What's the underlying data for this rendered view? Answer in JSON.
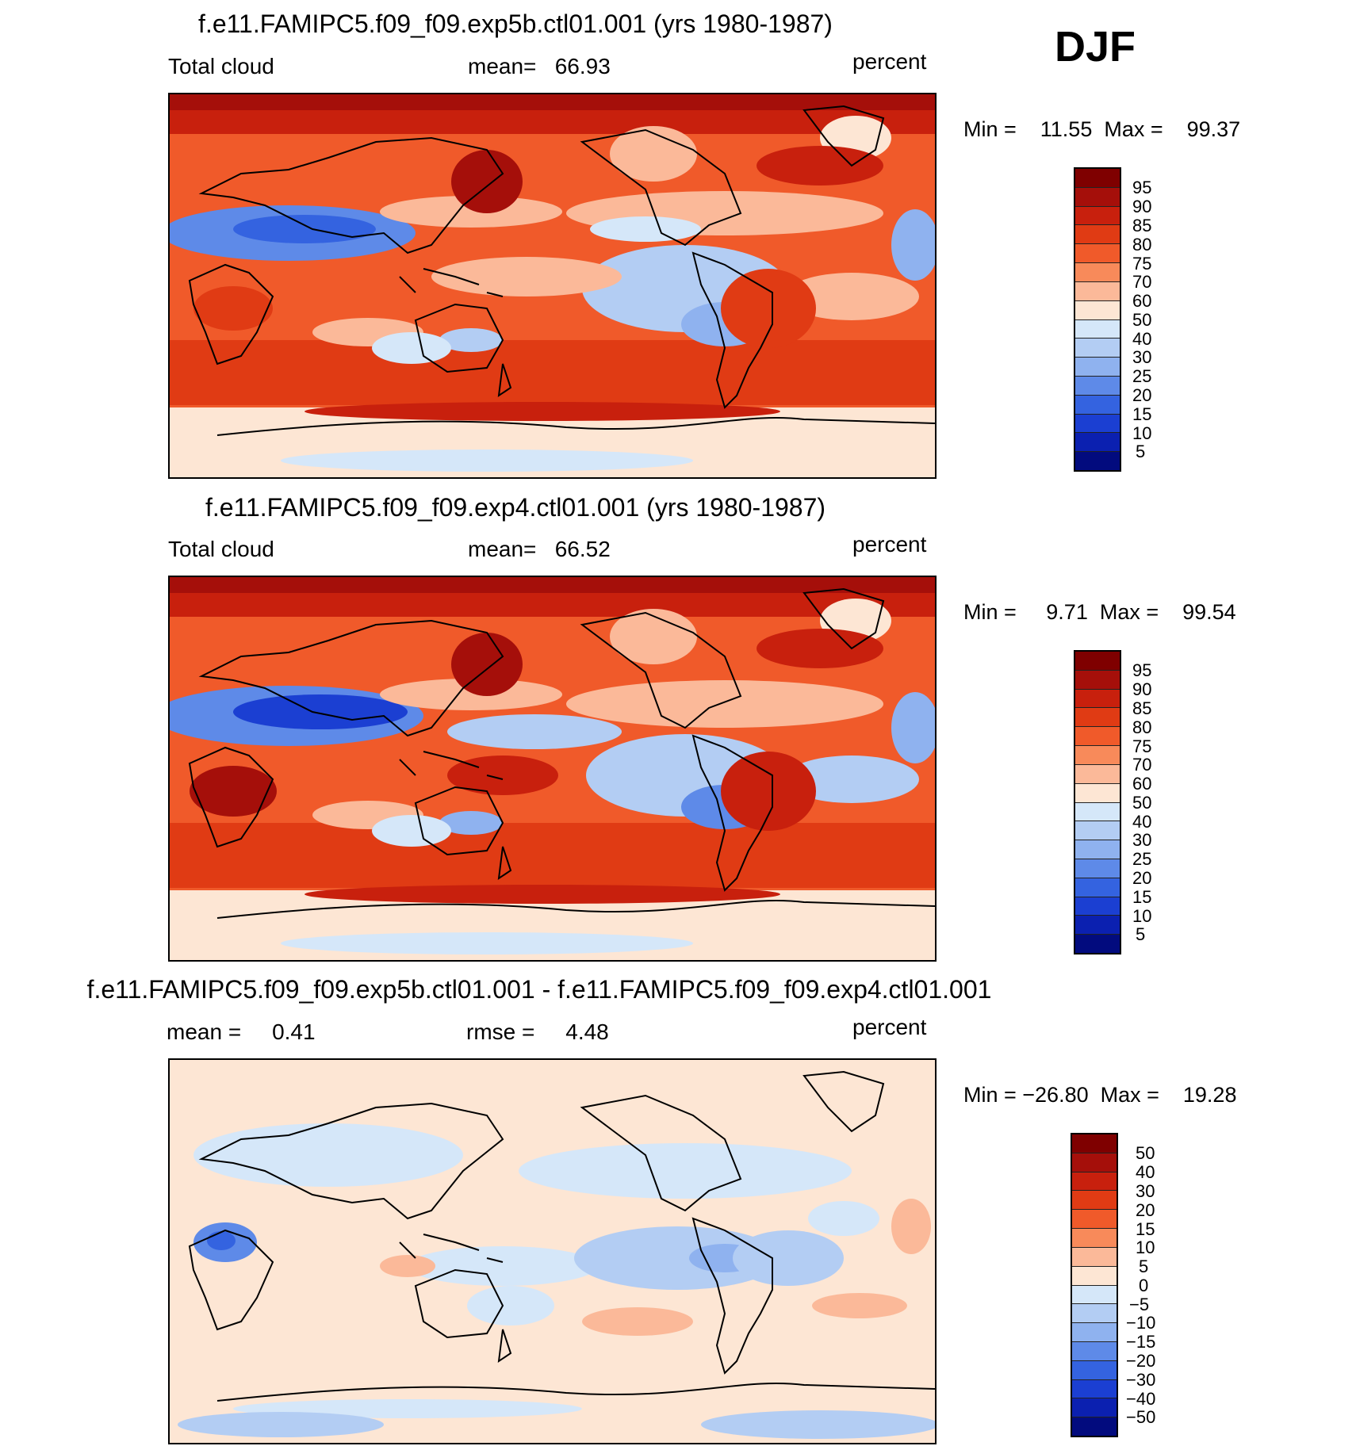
{
  "season": "DJF",
  "panels": [
    {
      "title": "f.e11.FAMIPC5.f09_f09.exp5b.ctl01.001 (yrs 1980-1987)",
      "left_label": "Total cloud",
      "center_label": "mean=   66.93",
      "right_label": "percent",
      "minmax": "Min =    11.55  Max =    99.37",
      "colorbar_labels": [
        "95",
        "90",
        "85",
        "80",
        "75",
        "70",
        "60",
        "50",
        "40",
        "30",
        "25",
        "20",
        "15",
        "10",
        "5"
      ]
    },
    {
      "title": "f.e11.FAMIPC5.f09_f09.exp4.ctl01.001 (yrs 1980-1987)",
      "left_label": "Total cloud",
      "center_label": "mean=   66.52",
      "right_label": "percent",
      "minmax": "Min =     9.71  Max =    99.54",
      "colorbar_labels": [
        "95",
        "90",
        "85",
        "80",
        "75",
        "70",
        "60",
        "50",
        "40",
        "30",
        "25",
        "20",
        "15",
        "10",
        "5"
      ]
    },
    {
      "title": "f.e11.FAMIPC5.f09_f09.exp5b.ctl01.001 - f.e11.FAMIPC5.f09_f09.exp4.ctl01.001",
      "left_label": "mean =     0.41",
      "center_label": "rmse =     4.48",
      "right_label": "percent",
      "minmax": "Min = −26.80  Max =    19.28",
      "colorbar_labels": [
        "50",
        "40",
        "30",
        "20",
        "15",
        "10",
        "5",
        "0",
        "−5",
        "−10",
        "−15",
        "−20",
        "−30",
        "−40",
        "−50"
      ]
    }
  ],
  "colors": {
    "scale": [
      "#7f0000",
      "#a50f0a",
      "#c8200d",
      "#e03b14",
      "#f05a2a",
      "#f88a5a",
      "#fbb999",
      "#fde6d4",
      "#d5e7f9",
      "#b3cdf3",
      "#8fb2ef",
      "#5e8ae8",
      "#3463e0",
      "#1b3fd2",
      "#0b20b0",
      "#020b7e"
    ]
  }
}
